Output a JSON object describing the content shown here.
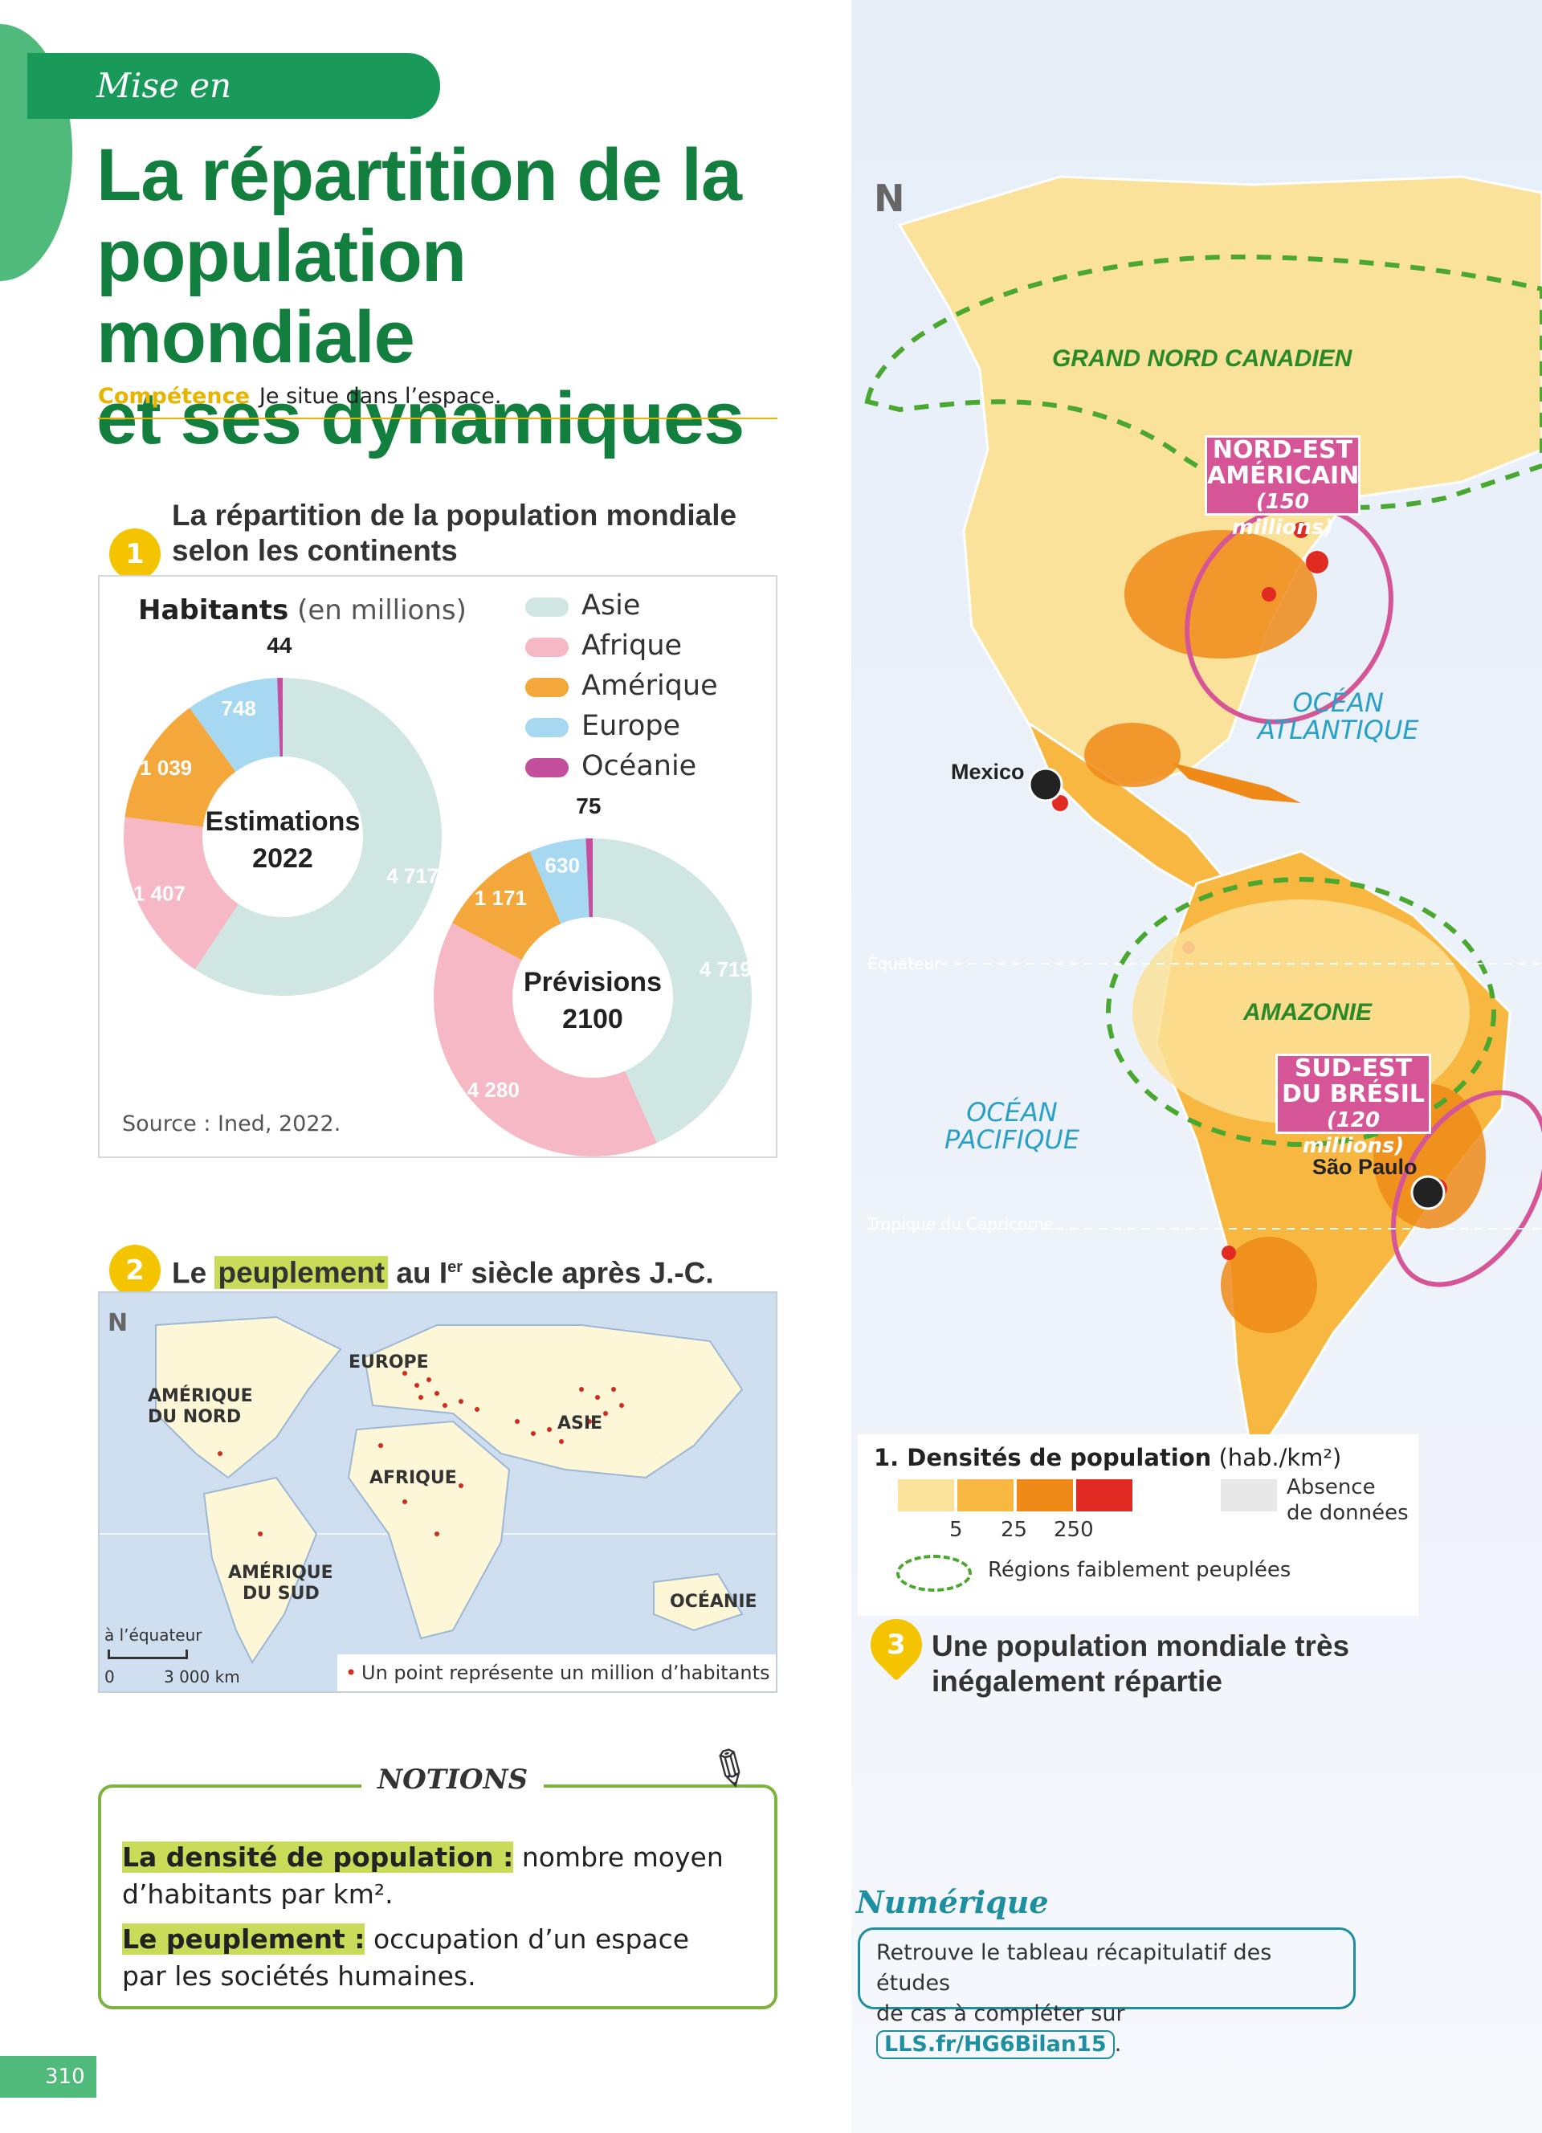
{
  "header": {
    "tag": "Mise en perspective",
    "title_lines": [
      "La répartition de la",
      "population mondiale",
      "et ses dynamiques"
    ],
    "competence_label": "Compétence",
    "competence_text": "Je situe dans l’espace."
  },
  "doc1": {
    "number": "1",
    "title_line1": "La répartition de la population mondiale",
    "title_line2": "selon les continents",
    "axis_title": "Habitants",
    "axis_unit": "(en millions)",
    "source": "Source : Ined, 2022.",
    "legend": [
      "Asie",
      "Afrique",
      "Amérique",
      "Europe",
      "Océanie"
    ],
    "colors": {
      "Asie": "#cfe6e2",
      "Afrique": "#f5b8c4",
      "Amérique": "#f4a73a",
      "Europe": "#a6d8f2",
      "Océanie": "#c44f9c"
    }
  },
  "chart_data": {
    "type": "pie",
    "title": "La répartition de la population mondiale selon les continents",
    "unit": "Habitants (en millions)",
    "charts": [
      {
        "name": "Estimations 2022",
        "label_line1": "Estimations",
        "label_line2": "2022",
        "categories": [
          "Asie",
          "Afrique",
          "Amérique",
          "Europe",
          "Océanie"
        ],
        "values": [
          4717,
          1407,
          1039,
          748,
          44
        ],
        "labels": [
          "4 717",
          "1 407",
          "1 039",
          "748",
          "44"
        ]
      },
      {
        "name": "Prévisions 2100",
        "label_line1": "Prévisions",
        "label_line2": "2100",
        "categories": [
          "Asie",
          "Afrique",
          "Amérique",
          "Europe",
          "Océanie"
        ],
        "values": [
          4719,
          4280,
          1171,
          630,
          75
        ],
        "labels": [
          "4 719",
          "4 280",
          "1 171",
          "630",
          "75"
        ]
      }
    ]
  },
  "doc2": {
    "number": "2",
    "title_pre": "Le",
    "title_hl": "peuplement",
    "title_post": "au I",
    "title_sup": "er",
    "title_end": "siècle après J.-C.",
    "north": "N",
    "regions": [
      "EUROPE",
      "AMÉRIQUE",
      "DU NORD",
      "ASIE",
      "AFRIQUE",
      "AMÉRIQUE",
      "DU SUD",
      "OCÉANIE"
    ],
    "scale_title": "à l’équateur",
    "scale_0": "0",
    "scale_max": "3 000 km",
    "legend": "Un point représente un million d’habitants"
  },
  "notions": {
    "title": "NOTIONS",
    "def1_term": "La densité de population :",
    "def1_text": "nombre moyen d’habitants par km².",
    "def2_term": "Le peuplement :",
    "def2_text": "occupation d’un espace par les sociétés humaines."
  },
  "doc3": {
    "number": "3",
    "title_line1": "Une population mondiale très",
    "title_line2": "inégalement répartie",
    "north": "N",
    "labels": {
      "grand_nord": "GRAND NORD CANADIEN",
      "nordest_1": "NORD-EST",
      "nordest_2": "AMÉRICAIN",
      "nordest_3": "(150 millions)",
      "ocean_atl_1": "OCÉAN",
      "ocean_atl_2": "ATLANTIQUE",
      "mexico": "Mexico",
      "equateur": "Équateur",
      "amazonie": "AMAZONIE",
      "sudest_1": "SUD-EST",
      "sudest_2": "DU BRÉSIL",
      "sudest_3": "(120 millions)",
      "ocean_pac_1": "OCÉAN",
      "ocean_pac_2": "PACIFIQUE",
      "sao_paulo": "São Paulo",
      "tropique": "Tropique du Capricorne"
    },
    "legend_title": "1. Densités de population",
    "legend_unit": "(hab./km²)",
    "legend_ticks": [
      "5",
      "25",
      "250"
    ],
    "legend_colors": [
      "#fbe29a",
      "#f7b740",
      "#ef8a18",
      "#e02a22"
    ],
    "legend_na": "Absence de données",
    "legend_na_line1": "Absence",
    "legend_na_line2": "de données",
    "legend_sparse": "Régions faiblement peuplées"
  },
  "numerique": {
    "title": "Numérique",
    "text_line1": "Retrouve le tableau récapitulatif des études",
    "text_line2": "de cas à compléter sur",
    "link": "LLS.fr/HG6Bilan15",
    "end": "."
  },
  "page_number": "310"
}
